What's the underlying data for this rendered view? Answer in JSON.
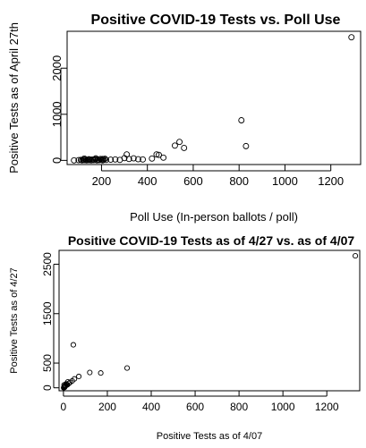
{
  "chart_data": [
    {
      "type": "scatter",
      "title": "Positive COVID-19 Tests vs. Poll Use",
      "xlabel": "Poll Use (In-person ballots / poll)",
      "ylabel": "Positive Tests as of April 27th",
      "xlim": [
        50,
        1330
      ],
      "ylim": [
        -90,
        2800
      ],
      "xticks": [
        200,
        400,
        600,
        800,
        1000,
        1200
      ],
      "yticks": [
        0,
        1000,
        2000
      ],
      "x": [
        80,
        100,
        110,
        115,
        120,
        125,
        130,
        135,
        140,
        145,
        150,
        155,
        160,
        165,
        170,
        175,
        180,
        185,
        190,
        195,
        200,
        205,
        210,
        215,
        220,
        240,
        260,
        280,
        300,
        310,
        320,
        340,
        360,
        380,
        420,
        440,
        450,
        470,
        520,
        540,
        560,
        810,
        830,
        1290,
        125,
        145,
        175,
        205
      ],
      "y": [
        0,
        5,
        10,
        0,
        15,
        5,
        20,
        0,
        10,
        5,
        15,
        0,
        20,
        5,
        10,
        25,
        0,
        15,
        5,
        30,
        10,
        0,
        20,
        35,
        10,
        15,
        20,
        10,
        50,
        130,
        30,
        45,
        25,
        20,
        40,
        130,
        120,
        60,
        320,
        400,
        270,
        870,
        310,
        2670,
        40,
        25,
        45,
        30
      ]
    },
    {
      "type": "scatter",
      "title": "Positive COVID-19 Tests as of 4/27 vs. as of 4/07",
      "xlabel": "Positive Tests as of 4/07",
      "ylabel": "Positive Tests as of 4/27",
      "xlim": [
        -20,
        1350
      ],
      "ylim": [
        -60,
        2780
      ],
      "xticks": [
        0,
        200,
        400,
        600,
        800,
        1000,
        1200
      ],
      "yticks": [
        0,
        500,
        1500,
        2500
      ],
      "x": [
        1,
        2,
        3,
        4,
        5,
        6,
        7,
        8,
        9,
        10,
        3,
        5,
        7,
        12,
        15,
        18,
        20,
        25,
        30,
        40,
        45,
        50,
        70,
        120,
        170,
        290,
        1330
      ],
      "y": [
        2,
        5,
        10,
        15,
        20,
        30,
        25,
        40,
        35,
        50,
        60,
        8,
        45,
        80,
        70,
        60,
        120,
        90,
        110,
        140,
        870,
        180,
        230,
        310,
        300,
        400,
        2670
      ]
    }
  ]
}
